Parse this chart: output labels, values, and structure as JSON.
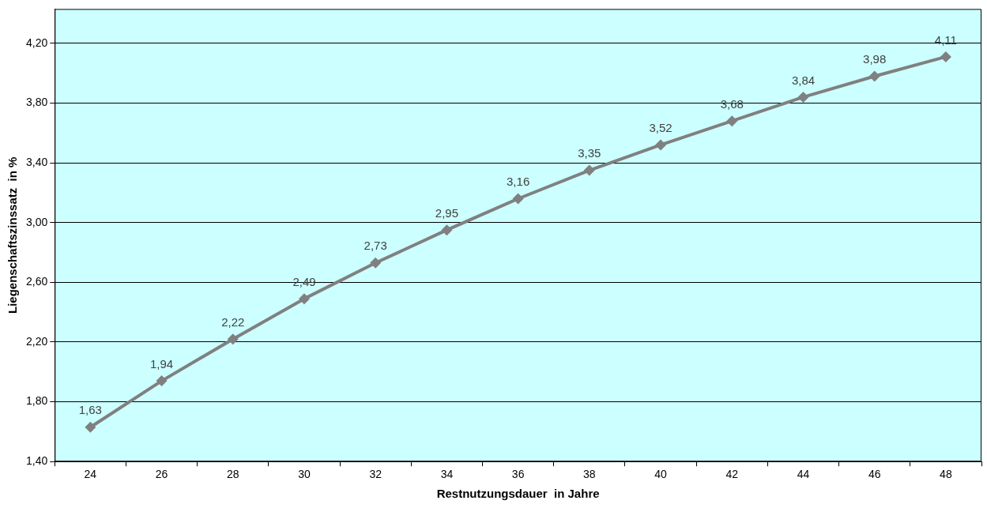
{
  "chart_data": {
    "type": "line",
    "xlabel": "Restnutzungsdauer  in Jahre",
    "ylabel": "Liegenschaftszinssatz  in %",
    "categories": [
      "24",
      "26",
      "28",
      "30",
      "32",
      "34",
      "36",
      "38",
      "40",
      "42",
      "44",
      "46",
      "48"
    ],
    "series": [
      {
        "color": "#808080",
        "values": [
          1.63,
          1.94,
          2.22,
          2.49,
          2.73,
          2.95,
          3.16,
          3.35,
          3.52,
          3.68,
          3.84,
          3.98,
          4.11
        ],
        "value_labels": [
          "1,63",
          "1,94",
          "2,22",
          "2,49",
          "2,73",
          "2,95",
          "3,16",
          "3,35",
          "3,52",
          "3,68",
          "3,84",
          "3,98",
          "4,11"
        ]
      }
    ],
    "ylim": [
      1.4,
      4.43
    ],
    "yticks": [
      {
        "value": 1.4,
        "label": "1,40"
      },
      {
        "value": 1.8,
        "label": "1,80"
      },
      {
        "value": 2.2,
        "label": "2,20"
      },
      {
        "value": 2.6,
        "label": "2,60"
      },
      {
        "value": 3.0,
        "label": "3,00"
      },
      {
        "value": 3.4,
        "label": "3,40"
      },
      {
        "value": 3.8,
        "label": "3,80"
      },
      {
        "value": 4.2,
        "label": "4,20"
      }
    ],
    "grid": "y",
    "marker": "diamond",
    "line_style": "solid",
    "legend": false
  }
}
